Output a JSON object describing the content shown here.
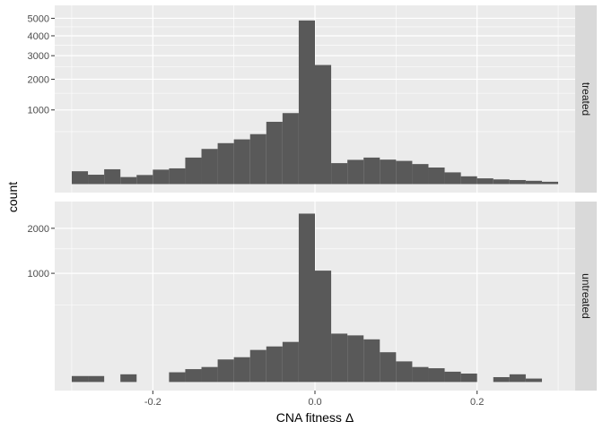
{
  "chart_data": {
    "type": "bar",
    "subtype": "faceted-histogram",
    "xlabel": "CNA fitness Δ",
    "ylabel": "count",
    "x_ticks": [
      -0.2,
      0.0,
      0.2
    ],
    "x_tick_labels": [
      "-0.2",
      "0.0",
      "0.2"
    ],
    "xlim": [
      -0.3,
      0.3
    ],
    "y_scale": "sqrt",
    "grid": true,
    "colors": {
      "bar": "#595959",
      "panel": "#ebebeb",
      "strip": "#d9d9d9",
      "grid": "#ffffff"
    },
    "bins": {
      "start": -0.3,
      "width": 0.02,
      "count": 30
    },
    "panels": [
      {
        "label": "treated",
        "y_ticks": [
          1000,
          2000,
          3000,
          4000,
          5000
        ],
        "y_tick_labels": [
          "1000",
          "2000",
          "3000",
          "4000",
          "5000"
        ],
        "ylim": [
          0,
          5270
        ],
        "values": [
          30,
          16,
          40,
          9,
          15,
          38,
          45,
          128,
          225,
          305,
          364,
          454,
          706,
          917,
          4870,
          2580,
          80,
          107,
          128,
          109,
          98,
          73,
          50,
          25,
          11,
          6,
          4,
          3,
          2,
          1
        ]
      },
      {
        "label": "untreated",
        "y_ticks": [
          1000,
          2000
        ],
        "y_tick_labels": [
          "1000",
          "2000"
        ],
        "ylim": [
          0,
          2500
        ],
        "values": [
          3,
          3,
          0,
          5,
          0,
          0,
          8,
          14,
          19,
          43,
          52,
          87,
          107,
          136,
          2400,
          1050,
          198,
          184,
          154,
          75,
          36,
          19,
          16,
          9,
          6,
          0,
          2,
          5,
          1,
          0
        ]
      }
    ]
  }
}
